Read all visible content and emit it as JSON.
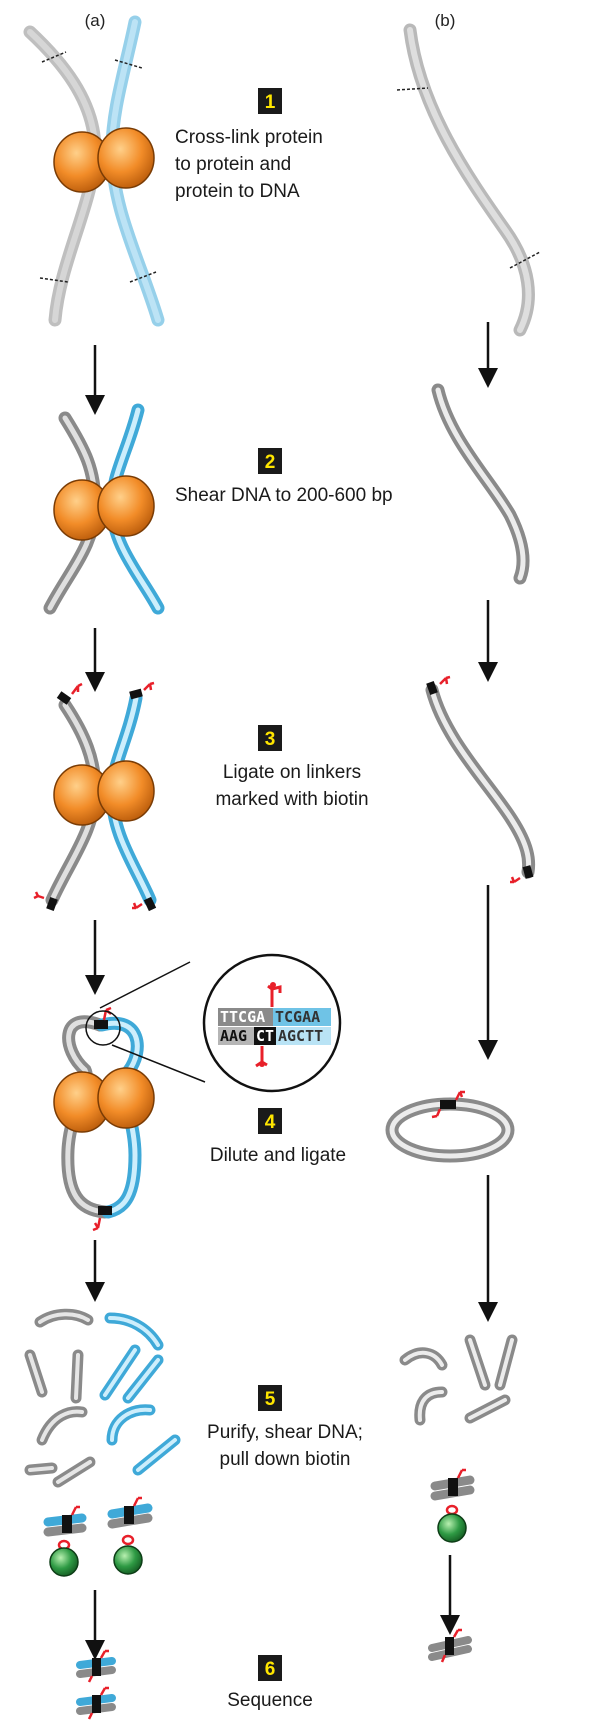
{
  "labels": {
    "col_a": "(a)",
    "col_b": "(b)"
  },
  "steps": [
    {
      "num": "1",
      "lines": [
        "Cross-link protein",
        "to protein and",
        "protein to DNA"
      ]
    },
    {
      "num": "2",
      "lines": [
        "Shear DNA to 200-600 bp"
      ]
    },
    {
      "num": "3",
      "lines": [
        "Ligate on linkers",
        "marked with biotin"
      ]
    },
    {
      "num": "4",
      "lines": [
        "Dilute and ligate"
      ]
    },
    {
      "num": "5",
      "lines": [
        "Purify, shear DNA;",
        "pull down biotin"
      ]
    },
    {
      "num": "6",
      "lines": [
        "Sequence"
      ]
    }
  ],
  "inset": {
    "top_dark": "TTCGA",
    "top_light": "TCGAA",
    "bottom_light": "AAG",
    "bottom_dark": "CT",
    "bottom_rest": "AGCTT"
  },
  "colors": {
    "protein": "#f28c28",
    "dna_gray": "#9a9a9a",
    "dna_blue": "#3fa9d8",
    "biotin": "#e8202a",
    "bead": "#2e9a44",
    "badge": "#1a1a1a",
    "badge_text": "#ffe600"
  }
}
